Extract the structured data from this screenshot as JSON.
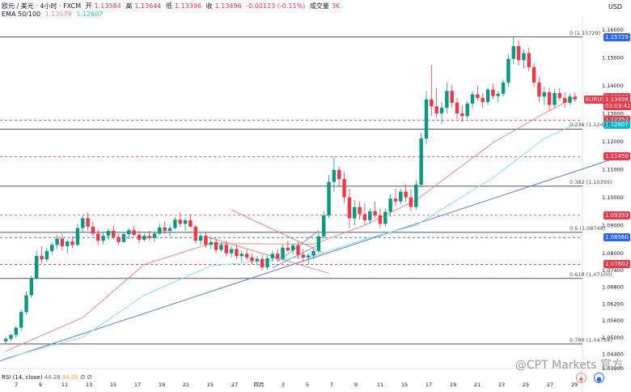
{
  "header": {
    "symbol_line": "欧元 / 美元 · 4小时 · FXCM",
    "open_label": "开",
    "open": "1.13584",
    "high_label": "高",
    "high": "1.13644",
    "low_label": "低",
    "low": "1.13396",
    "close_label": "收",
    "close": "1.13496",
    "change": "-0.00123 (-0.11%)",
    "volume_label": "成交量",
    "volume": "3K",
    "ema_label": "EMA 50/100",
    "ema50": "1.13579",
    "ema100": "1.12607"
  },
  "top_right_label": "USD",
  "rsi": {
    "label": "RSI (14, close)",
    "v1": "44.28",
    "v2": "44.05",
    "suffix": "∅ ∅"
  },
  "watermark": "@CPT Markets 官方",
  "colors": {
    "up": "#089981",
    "down": "#f23645",
    "ema50": "#f28b82",
    "ema100": "#7ee6e6",
    "trend": "#5b7fd6",
    "channel": "#e57373",
    "fib": "#555555",
    "red_dash": "#f23645",
    "blue_dash": "#2962ff"
  },
  "chart_data": {
    "type": "candlestick",
    "symbol": "EURUSD",
    "timeframe": "4小时",
    "ylim": [
      1.0388,
      1.1624
    ],
    "y_ticks": [
      "1.16000",
      "1.15000",
      "1.14000",
      "1.13000",
      "1.12000",
      "1.11000",
      "1.10000",
      "1.09000",
      "1.08000",
      "1.07400",
      "1.06800",
      "1.06200",
      "1.05600",
      "1.05000",
      "1.04400",
      "1.03900"
    ],
    "x_tick_labels": [
      "7",
      "9",
      "11",
      "13",
      "15",
      "17",
      "19",
      "21",
      "25",
      "27",
      "四月",
      "3",
      "5",
      "7",
      "9",
      "11",
      "15",
      "17",
      "19",
      "21",
      "23",
      "25",
      "27",
      "29"
    ],
    "candles": [
      [
        1.0485,
        1.0501,
        1.0478,
        1.0494
      ],
      [
        1.0494,
        1.0512,
        1.0486,
        1.0508
      ],
      [
        1.0508,
        1.054,
        1.0498,
        1.0534
      ],
      [
        1.0534,
        1.06,
        1.0522,
        1.059
      ],
      [
        1.059,
        1.0665,
        1.058,
        1.065
      ],
      [
        1.065,
        1.072,
        1.064,
        1.0712
      ],
      [
        1.0712,
        1.081,
        1.0705,
        1.079
      ],
      [
        1.079,
        1.0825,
        1.0765,
        1.0778
      ],
      [
        1.0778,
        1.082,
        1.077,
        1.0808
      ],
      [
        1.0808,
        1.084,
        1.0795,
        1.083
      ],
      [
        1.083,
        1.0865,
        1.0815,
        1.0852
      ],
      [
        1.0852,
        1.087,
        1.081,
        1.0825
      ],
      [
        1.0825,
        1.085,
        1.08,
        1.0842
      ],
      [
        1.0842,
        1.086,
        1.0818,
        1.083
      ],
      [
        1.083,
        1.0905,
        1.0825,
        1.089
      ],
      [
        1.089,
        1.0935,
        1.0875,
        1.0925
      ],
      [
        1.0925,
        1.0945,
        1.088,
        1.0895
      ],
      [
        1.0895,
        1.0912,
        1.086,
        1.087
      ],
      [
        1.087,
        1.0885,
        1.083,
        1.0845
      ],
      [
        1.0845,
        1.0872,
        1.0832,
        1.0862
      ],
      [
        1.0862,
        1.089,
        1.0848,
        1.088
      ],
      [
        1.088,
        1.09,
        1.085,
        1.0858
      ],
      [
        1.0858,
        1.087,
        1.083,
        1.084
      ],
      [
        1.084,
        1.0875,
        1.0838,
        1.0868
      ],
      [
        1.0868,
        1.089,
        1.085,
        1.0882
      ],
      [
        1.0882,
        1.0898,
        1.086,
        1.0866
      ],
      [
        1.0866,
        1.088,
        1.0835,
        1.0848
      ],
      [
        1.0848,
        1.087,
        1.0842,
        1.0862
      ],
      [
        1.0862,
        1.088,
        1.0845,
        1.0855
      ],
      [
        1.0855,
        1.0878,
        1.084,
        1.087
      ],
      [
        1.087,
        1.0905,
        1.0865,
        1.0892
      ],
      [
        1.0892,
        1.0915,
        1.087,
        1.088
      ],
      [
        1.088,
        1.09,
        1.086,
        1.089
      ],
      [
        1.089,
        1.093,
        1.0885,
        1.092
      ],
      [
        1.092,
        1.0945,
        1.0895,
        1.0905
      ],
      [
        1.0905,
        1.0928,
        1.088,
        1.0918
      ],
      [
        1.0918,
        1.094,
        1.089,
        1.0895
      ],
      [
        1.0895,
        1.09,
        1.0835,
        1.0845
      ],
      [
        1.0845,
        1.087,
        1.083,
        1.0862
      ],
      [
        1.0862,
        1.0875,
        1.082,
        1.083
      ],
      [
        1.083,
        1.086,
        1.0815,
        1.084
      ],
      [
        1.084,
        1.0855,
        1.08,
        1.0812
      ],
      [
        1.0812,
        1.084,
        1.0805,
        1.083
      ],
      [
        1.083,
        1.0845,
        1.079,
        1.08
      ],
      [
        1.08,
        1.0825,
        1.0785,
        1.0815
      ],
      [
        1.0815,
        1.083,
        1.078,
        1.079
      ],
      [
        1.079,
        1.081,
        1.077,
        1.0798
      ],
      [
        1.0798,
        1.0815,
        1.0775,
        1.0785
      ],
      [
        1.0785,
        1.08,
        1.076,
        1.0772
      ],
      [
        1.0772,
        1.079,
        1.0755,
        1.078
      ],
      [
        1.078,
        1.0795,
        1.074,
        1.075
      ],
      [
        1.075,
        1.079,
        1.074,
        1.0782
      ],
      [
        1.0782,
        1.081,
        1.077,
        1.0798
      ],
      [
        1.0798,
        1.0815,
        1.077,
        1.078
      ],
      [
        1.078,
        1.083,
        1.0775,
        1.082
      ],
      [
        1.082,
        1.0845,
        1.0805,
        1.081
      ],
      [
        1.081,
        1.0835,
        1.0795,
        1.0828
      ],
      [
        1.0828,
        1.084,
        1.078,
        1.0795
      ],
      [
        1.0795,
        1.0815,
        1.077,
        1.0785
      ],
      [
        1.0785,
        1.08,
        1.076,
        1.0792
      ],
      [
        1.0792,
        1.0815,
        1.078,
        1.0808
      ],
      [
        1.0808,
        1.087,
        1.08,
        1.086
      ],
      [
        1.086,
        1.095,
        1.085,
        1.0935
      ],
      [
        1.0935,
        1.108,
        1.0925,
        1.1055
      ],
      [
        1.1055,
        1.1145,
        1.102,
        1.1098
      ],
      [
        1.1098,
        1.111,
        1.104,
        1.1065
      ],
      [
        1.1065,
        1.109,
        1.098,
        1.1
      ],
      [
        1.1,
        1.103,
        1.089,
        1.0925
      ],
      [
        1.0925,
        1.099,
        1.09,
        1.0965
      ],
      [
        1.0965,
        1.0985,
        1.092,
        1.094
      ],
      [
        1.094,
        1.098,
        1.09,
        1.0918
      ],
      [
        1.0918,
        1.096,
        1.0905,
        1.095
      ],
      [
        1.095,
        1.0985,
        1.0925,
        1.0935
      ],
      [
        1.0935,
        1.096,
        1.089,
        1.0905
      ],
      [
        1.0905,
        1.096,
        1.0895,
        1.0948
      ],
      [
        1.0948,
        1.101,
        1.093,
        1.0995
      ],
      [
        1.0995,
        1.103,
        1.097,
        1.0985
      ],
      [
        1.0985,
        1.103,
        1.0975,
        1.102
      ],
      [
        1.102,
        1.1045,
        1.0985,
        1.1
      ],
      [
        1.1,
        1.103,
        1.095,
        1.0965
      ],
      [
        1.0965,
        1.106,
        1.0955,
        1.1045
      ],
      [
        1.1045,
        1.123,
        1.1035,
        1.121
      ],
      [
        1.121,
        1.138,
        1.119,
        1.135
      ],
      [
        1.135,
        1.1473,
        1.129,
        1.1325
      ],
      [
        1.1325,
        1.139,
        1.1285,
        1.13
      ],
      [
        1.13,
        1.134,
        1.1262,
        1.132
      ],
      [
        1.132,
        1.141,
        1.13,
        1.138
      ],
      [
        1.138,
        1.14,
        1.132,
        1.1338
      ],
      [
        1.1338,
        1.1355,
        1.128,
        1.13
      ],
      [
        1.13,
        1.133,
        1.127,
        1.129
      ],
      [
        1.129,
        1.1345,
        1.128,
        1.1335
      ],
      [
        1.1335,
        1.138,
        1.1318,
        1.1368
      ],
      [
        1.1368,
        1.1398,
        1.1345,
        1.1355
      ],
      [
        1.1355,
        1.1372,
        1.132,
        1.134
      ],
      [
        1.134,
        1.1392,
        1.133,
        1.1385
      ],
      [
        1.1385,
        1.1405,
        1.1352,
        1.1362
      ],
      [
        1.1362,
        1.138,
        1.134,
        1.137
      ],
      [
        1.137,
        1.142,
        1.136,
        1.141
      ],
      [
        1.141,
        1.151,
        1.1395,
        1.1495
      ],
      [
        1.1495,
        1.1573,
        1.1475,
        1.154
      ],
      [
        1.154,
        1.156,
        1.147,
        1.149
      ],
      [
        1.149,
        1.153,
        1.146,
        1.1515
      ],
      [
        1.1515,
        1.1535,
        1.145,
        1.1465
      ],
      [
        1.1465,
        1.148,
        1.1395,
        1.141
      ],
      [
        1.141,
        1.143,
        1.134,
        1.136
      ],
      [
        1.136,
        1.1395,
        1.133,
        1.1375
      ],
      [
        1.1375,
        1.139,
        1.131,
        1.133
      ],
      [
        1.133,
        1.1388,
        1.132,
        1.1372
      ],
      [
        1.1372,
        1.139,
        1.1345,
        1.1355
      ],
      [
        1.1355,
        1.1375,
        1.132,
        1.1338
      ],
      [
        1.1338,
        1.137,
        1.133,
        1.136
      ],
      [
        1.136,
        1.1375,
        1.134,
        1.135
      ]
    ],
    "ema50_points": [
      [
        0,
        1.045
      ],
      [
        15,
        1.057
      ],
      [
        27,
        1.076
      ],
      [
        40,
        1.0835
      ],
      [
        60,
        1.0832
      ],
      [
        70,
        1.09
      ],
      [
        80,
        1.099
      ],
      [
        95,
        1.1195
      ],
      [
        105,
        1.13
      ],
      [
        111,
        1.1358
      ]
    ],
    "ema100_points": [
      [
        0,
        1.0425
      ],
      [
        15,
        1.05
      ],
      [
        27,
        1.065
      ],
      [
        40,
        1.0755
      ],
      [
        60,
        1.079
      ],
      [
        70,
        1.085
      ],
      [
        80,
        1.09
      ],
      [
        95,
        1.107
      ],
      [
        105,
        1.121
      ],
      [
        111,
        1.1261
      ]
    ],
    "fib_levels": [
      {
        "label": "0 (1.15729)",
        "price": 1.15729
      },
      {
        "label": "0.236 (1.12434)",
        "price": 1.12434
      },
      {
        "label": "0.382 (1.10395)",
        "price": 1.10395
      },
      {
        "label": "0.5 (1.08748)",
        "price": 1.08748
      },
      {
        "label": "0.618 (1.07100)",
        "price": 1.071
      },
      {
        "label": "0.786 (1.04754)",
        "price": 1.04754
      }
    ],
    "red_dashed_levels": [
      1.12757,
      1.1145,
      1.09359,
      1.07602
    ],
    "blue_dashed_levels": [
      1.0856
    ],
    "price_badges": [
      {
        "text": "1.15729",
        "color": "#2962ff"
      },
      {
        "text": "1.13579",
        "color": "#f23645"
      },
      {
        "text": "EURUSD",
        "color": "#f23645"
      },
      {
        "text": "1.13496",
        "color": "#f23645"
      },
      {
        "text": "02:03:42",
        "color": "#f23645"
      },
      {
        "text": "1.12757",
        "color": "#f23645"
      },
      {
        "text": "1.12607",
        "color": "#00bcd4"
      },
      {
        "text": "1.11450",
        "color": "#f23645"
      },
      {
        "text": "1.09359",
        "color": "#f23645"
      },
      {
        "text": "1.08560",
        "color": "#2962ff"
      },
      {
        "text": "1.07602",
        "color": "#f23645"
      }
    ]
  }
}
